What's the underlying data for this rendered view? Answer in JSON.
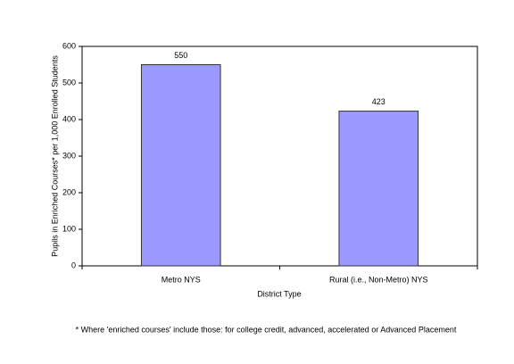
{
  "chart_data": {
    "type": "bar",
    "categories": [
      "Metro NYS",
      "Rural (i.e., Non-Metro) NYS"
    ],
    "values": [
      550,
      423
    ],
    "color": "#9999ff",
    "ylim": [
      0,
      600
    ],
    "yticks": [
      0,
      100,
      200,
      300,
      400,
      500,
      600
    ],
    "xlabel": "District Type",
    "ylabel": "Pupils in Enriched Courses* per 1,000 Enrolled Students",
    "footnote": "* Where 'enriched courses' include those: for college credit, advanced, accelerated or Advanced Placement",
    "grid": false
  }
}
